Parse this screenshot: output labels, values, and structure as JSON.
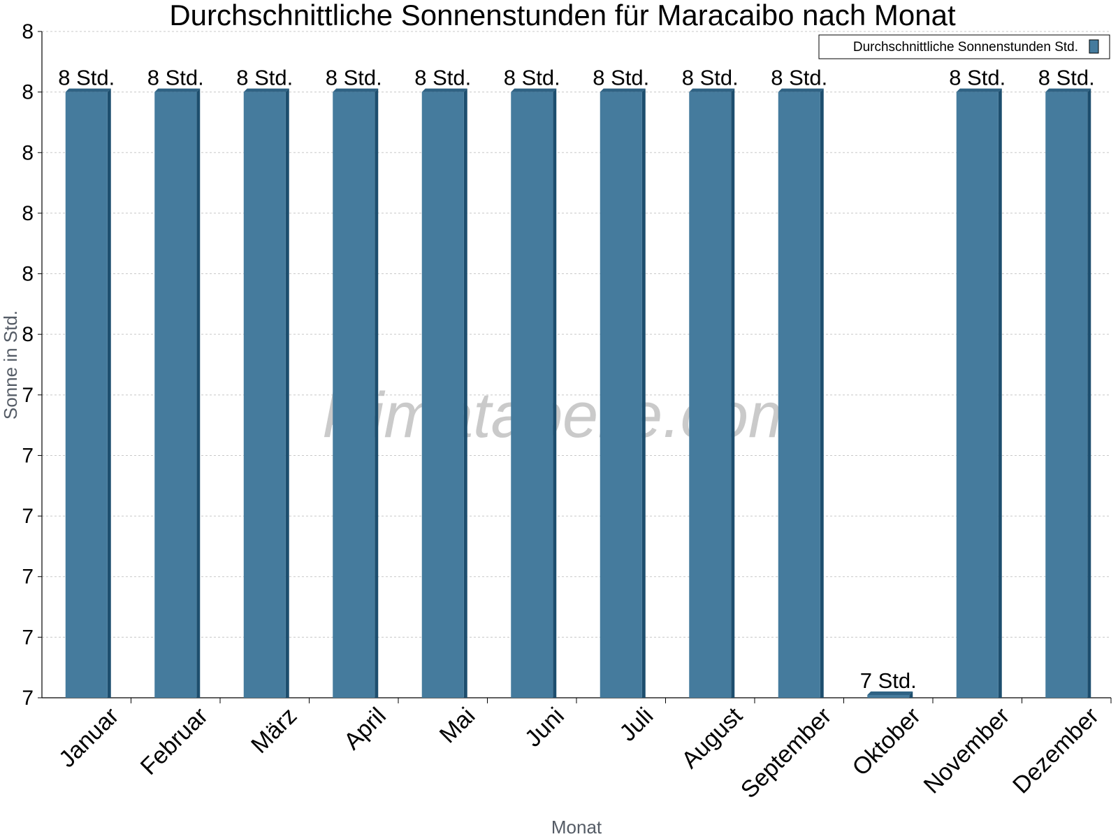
{
  "chart_data": {
    "type": "bar",
    "title": "Durchschnittliche Sonnenstunden für Maracaibo nach Monat",
    "xlabel": "Monat",
    "ylabel": "Sonne in Std.",
    "categories": [
      "Januar",
      "Februar",
      "März",
      "April",
      "Mai",
      "Juni",
      "Juli",
      "August",
      "September",
      "Oktober",
      "November",
      "Dezember"
    ],
    "series": [
      {
        "name": "Durchschnittliche Sonnenstunden Std.",
        "values": [
          8.0,
          8.0,
          8.0,
          8.0,
          8.0,
          8.0,
          8.0,
          8.0,
          8.0,
          7.0,
          8.0,
          8.0
        ],
        "labels": [
          "8 Std.",
          "8 Std.",
          "8 Std.",
          "8 Std.",
          "8 Std.",
          "8 Std.",
          "8 Std.",
          "8 Std.",
          "8 Std.",
          "7 Std.",
          "8 Std.",
          "8 Std."
        ]
      }
    ],
    "ylim": [
      7.0,
      8.1
    ],
    "yticks": [
      7.0,
      7.1,
      7.2,
      7.3,
      7.4,
      7.5,
      7.6,
      7.7,
      7.8,
      7.9,
      8.0,
      8.1
    ],
    "ytick_labels": [
      "7",
      "7",
      "7",
      "7",
      "7",
      "7",
      "8",
      "8",
      "8",
      "8",
      "8",
      "8"
    ],
    "grid": true,
    "legend_position": "top-right",
    "colors": {
      "bar": "#457b9d",
      "bar_side": "#1d4e6e",
      "bar_top": "#2f6283"
    }
  },
  "watermark": "klimatabelle.com"
}
